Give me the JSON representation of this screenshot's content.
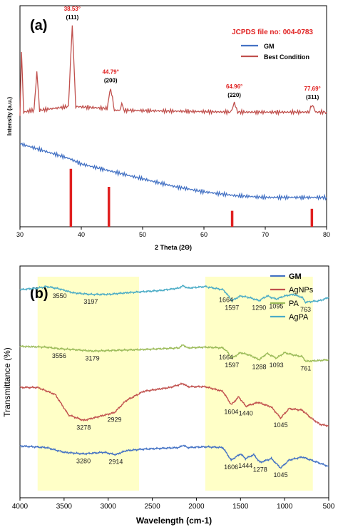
{
  "chart_data": [
    {
      "type": "line",
      "panel_label": "(a)",
      "xlabel": "2 Theta (2Θ)",
      "ylabel": "Intensity (a.u.)",
      "xlim": [
        30,
        80
      ],
      "x_ticks": [
        "30",
        "40",
        "50",
        "60",
        "70",
        "80"
      ],
      "legend_title": "JCPDS file no: 004-0783",
      "legend_placement": "top-right",
      "series": [
        {
          "name": "GM",
          "color": "#4472c4",
          "points": [
            [
              30,
              0.36
            ],
            [
              32,
              0.34
            ],
            [
              35,
              0.31
            ],
            [
              38,
              0.28
            ],
            [
              40,
              0.25
            ],
            [
              45,
              0.21
            ],
            [
              50,
              0.17
            ],
            [
              55,
              0.13
            ],
            [
              60,
              0.1
            ],
            [
              65,
              0.08
            ],
            [
              70,
              0.07
            ],
            [
              75,
              0.07
            ],
            [
              80,
              0.07
            ]
          ]
        },
        {
          "name": "Best Condition",
          "color": "#c0504d",
          "points": [
            [
              30,
              0.52
            ],
            [
              30.25,
              0.86
            ],
            [
              30.6,
              0.53
            ],
            [
              32.3,
              0.54
            ],
            [
              32.75,
              0.75
            ],
            [
              33.2,
              0.54
            ],
            [
              37.9,
              0.56
            ],
            [
              38.53,
              1.0
            ],
            [
              39.1,
              0.56
            ],
            [
              44.2,
              0.55
            ],
            [
              44.79,
              0.66
            ],
            [
              45.4,
              0.54
            ],
            [
              46.3,
              0.54
            ],
            [
              46.6,
              0.58
            ],
            [
              46.9,
              0.54
            ],
            [
              64.4,
              0.53
            ],
            [
              64.96,
              0.58
            ],
            [
              65.5,
              0.53
            ],
            [
              77.1,
              0.53
            ],
            [
              77.69,
              0.57
            ],
            [
              78.2,
              0.53
            ],
            [
              80,
              0.53
            ]
          ]
        }
      ],
      "reference_lines": {
        "color": "#e02020",
        "positions": [
          38.3,
          44.5,
          64.6,
          77.6
        ],
        "heights": [
          0.58,
          0.4,
          0.16,
          0.18
        ]
      },
      "annotations": [
        {
          "angle": "38.53°",
          "hkl": "(111)",
          "x": 38.53
        },
        {
          "angle": "44.79°",
          "hkl": "(200)",
          "x": 44.79
        },
        {
          "angle": "64.96°",
          "hkl": "(220)",
          "x": 64.96
        },
        {
          "angle": "77.69°",
          "hkl": "(311)",
          "x": 77.69
        }
      ]
    },
    {
      "type": "line",
      "panel_label": "(b)",
      "xlabel": "Wavelength (cm-1)",
      "ylabel": "Transmittance (%)",
      "xlim": [
        4000,
        500
      ],
      "x_ticks": [
        "4000",
        "3500",
        "3000",
        "2500",
        "2000",
        "1500",
        "1000",
        "500"
      ],
      "legend_placement": "top-right",
      "highlight_color": "#ffff99",
      "highlight_regions": [
        [
          3800,
          2650
        ],
        [
          1900,
          680
        ]
      ],
      "series": [
        {
          "name": "GM",
          "color": "#4472c4",
          "points": [
            [
              4000,
              0.34
            ],
            [
              3700,
              0.36
            ],
            [
              3500,
              0.42
            ],
            [
              3280,
              0.44
            ],
            [
              3050,
              0.42
            ],
            [
              2914,
              0.45
            ],
            [
              2800,
              0.4
            ],
            [
              2600,
              0.38
            ],
            [
              2200,
              0.36
            ],
            [
              2150,
              0.33
            ],
            [
              2100,
              0.36
            ],
            [
              1900,
              0.35
            ],
            [
              1700,
              0.36
            ],
            [
              1606,
              0.52
            ],
            [
              1500,
              0.44
            ],
            [
              1444,
              0.5
            ],
            [
              1350,
              0.45
            ],
            [
              1278,
              0.55
            ],
            [
              1150,
              0.5
            ],
            [
              1045,
              0.62
            ],
            [
              950,
              0.52
            ],
            [
              800,
              0.48
            ],
            [
              700,
              0.52
            ],
            [
              500,
              0.6
            ]
          ]
        },
        {
          "name": "AgNPs",
          "color": "#c0504d",
          "points": [
            [
              4000,
              0.03
            ],
            [
              3800,
              0.03
            ],
            [
              3600,
              0.12
            ],
            [
              3450,
              0.38
            ],
            [
              3278,
              0.45
            ],
            [
              3100,
              0.4
            ],
            [
              2929,
              0.35
            ],
            [
              2800,
              0.2
            ],
            [
              2600,
              0.08
            ],
            [
              2300,
              0.03
            ],
            [
              2150,
              -0.02
            ],
            [
              2100,
              0.02
            ],
            [
              1900,
              0.02
            ],
            [
              1700,
              0.08
            ],
            [
              1604,
              0.25
            ],
            [
              1520,
              0.15
            ],
            [
              1440,
              0.27
            ],
            [
              1300,
              0.22
            ],
            [
              1150,
              0.28
            ],
            [
              1045,
              0.42
            ],
            [
              950,
              0.3
            ],
            [
              800,
              0.32
            ],
            [
              700,
              0.42
            ],
            [
              600,
              0.5
            ],
            [
              500,
              0.52
            ]
          ]
        },
        {
          "name": "PA",
          "color": "#9bbb59",
          "points": [
            [
              4000,
              -0.13
            ],
            [
              3700,
              -0.12
            ],
            [
              3556,
              -0.1
            ],
            [
              3400,
              -0.09
            ],
            [
              3179,
              -0.07
            ],
            [
              2900,
              -0.08
            ],
            [
              2600,
              -0.09
            ],
            [
              2200,
              -0.11
            ],
            [
              2150,
              -0.15
            ],
            [
              2100,
              -0.11
            ],
            [
              1900,
              -0.12
            ],
            [
              1700,
              -0.11
            ],
            [
              1664,
              -0.08
            ],
            [
              1597,
              0.02
            ],
            [
              1500,
              -0.05
            ],
            [
              1400,
              -0.02
            ],
            [
              1288,
              0.04
            ],
            [
              1200,
              -0.04
            ],
            [
              1093,
              0.02
            ],
            [
              1000,
              -0.05
            ],
            [
              900,
              -0.02
            ],
            [
              800,
              0.0
            ],
            [
              761,
              0.06
            ],
            [
              600,
              0.05
            ],
            [
              500,
              0.04
            ]
          ]
        },
        {
          "name": "AgPA",
          "color": "#4bacc6",
          "points": [
            [
              4000,
              -0.28
            ],
            [
              3800,
              -0.3
            ],
            [
              3700,
              -0.32
            ],
            [
              3550,
              -0.29
            ],
            [
              3400,
              -0.24
            ],
            [
              3197,
              -0.22
            ],
            [
              3000,
              -0.22
            ],
            [
              2800,
              -0.24
            ],
            [
              2400,
              -0.27
            ],
            [
              2200,
              -0.3
            ],
            [
              2150,
              -0.33
            ],
            [
              2100,
              -0.3
            ],
            [
              1900,
              -0.32
            ],
            [
              1700,
              -0.28
            ],
            [
              1664,
              -0.24
            ],
            [
              1597,
              -0.14
            ],
            [
              1500,
              -0.2
            ],
            [
              1400,
              -0.18
            ],
            [
              1290,
              -0.14
            ],
            [
              1200,
              -0.2
            ],
            [
              1095,
              -0.16
            ],
            [
              1000,
              -0.2
            ],
            [
              900,
              -0.22
            ],
            [
              800,
              -0.18
            ],
            [
              763,
              -0.12
            ],
            [
              600,
              -0.14
            ],
            [
              500,
              -0.18
            ]
          ]
        }
      ],
      "peak_labels": [
        {
          "text": "3550",
          "series": "AgPA",
          "x": 3550
        },
        {
          "text": "3197",
          "series": "AgPA",
          "x": 3197
        },
        {
          "text": "1664",
          "series": "AgPA",
          "x": 1664
        },
        {
          "text": "1597",
          "series": "AgPA",
          "x": 1597
        },
        {
          "text": "1290",
          "series": "AgPA",
          "x": 1290
        },
        {
          "text": "1095",
          "series": "AgPA",
          "x": 1095
        },
        {
          "text": "763",
          "series": "AgPA",
          "x": 763
        },
        {
          "text": "3556",
          "series": "PA",
          "x": 3556
        },
        {
          "text": "3179",
          "series": "PA",
          "x": 3179
        },
        {
          "text": "1664",
          "series": "PA",
          "x": 1664
        },
        {
          "text": "1597",
          "series": "PA",
          "x": 1597
        },
        {
          "text": "1288",
          "series": "PA",
          "x": 1288
        },
        {
          "text": "1093",
          "series": "PA",
          "x": 1093
        },
        {
          "text": "761",
          "series": "PA",
          "x": 761
        },
        {
          "text": "3278",
          "series": "AgNPs",
          "x": 3278
        },
        {
          "text": "2929",
          "series": "AgNPs",
          "x": 2929
        },
        {
          "text": "1604",
          "series": "AgNPs",
          "x": 1604
        },
        {
          "text": "1440",
          "series": "AgNPs",
          "x": 1440
        },
        {
          "text": "1045",
          "series": "AgNPs",
          "x": 1045
        },
        {
          "text": "3280",
          "series": "GM",
          "x": 3280
        },
        {
          "text": "2914",
          "series": "GM",
          "x": 2914
        },
        {
          "text": "1606",
          "series": "GM",
          "x": 1606
        },
        {
          "text": "1444",
          "series": "GM",
          "x": 1444
        },
        {
          "text": "1278",
          "series": "GM",
          "x": 1278
        },
        {
          "text": "1045",
          "series": "GM",
          "x": 1045
        }
      ]
    }
  ]
}
